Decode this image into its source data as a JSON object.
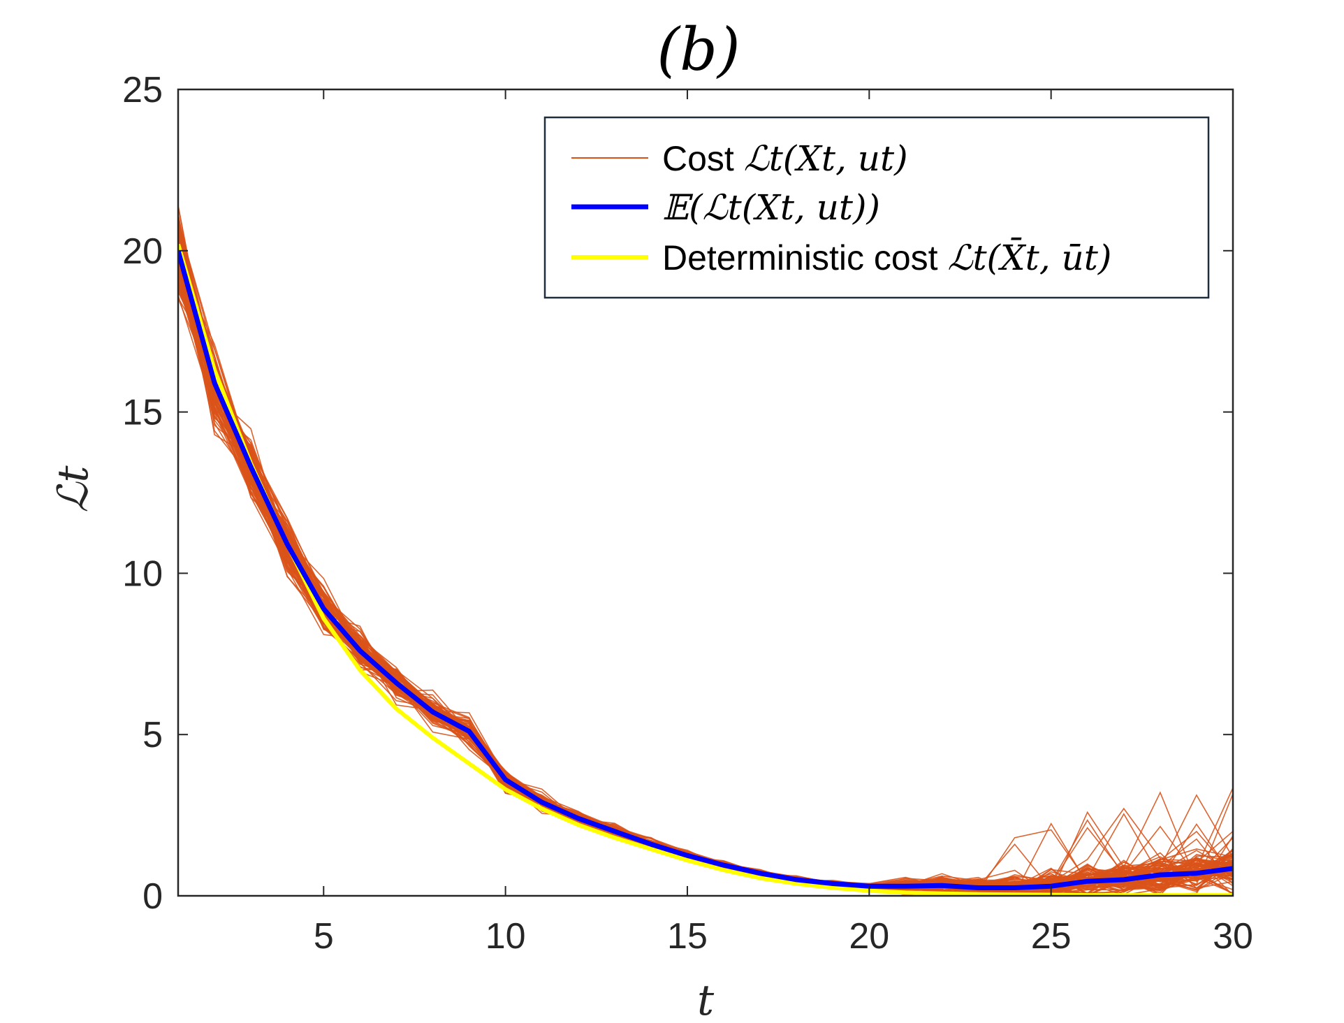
{
  "chart_data": {
    "type": "line",
    "title": "(b)",
    "xlabel": "t",
    "ylabel": "ℒt",
    "xlim": [
      1,
      30
    ],
    "ylim": [
      0,
      25
    ],
    "x_ticks": [
      5,
      10,
      15,
      20,
      25,
      30
    ],
    "y_ticks": [
      0,
      5,
      10,
      15,
      20,
      25
    ],
    "grid": false,
    "legend_position": "top-right",
    "x": [
      1,
      2,
      3,
      4,
      5,
      6,
      7,
      8,
      9,
      10,
      11,
      12,
      13,
      14,
      15,
      16,
      17,
      18,
      19,
      20,
      21,
      22,
      23,
      24,
      25,
      26,
      27,
      28,
      29,
      30
    ],
    "series": [
      {
        "name": "Cost ℒt(Xt, ut)",
        "color": "#D95319",
        "style": "sample paths (many thin lines)",
        "values": [
          20.0,
          15.9,
          13.3,
          10.9,
          8.9,
          7.6,
          6.6,
          5.7,
          5.1,
          3.6,
          2.9,
          2.4,
          2.0,
          1.6,
          1.25,
          0.95,
          0.7,
          0.5,
          0.38,
          0.3,
          0.3,
          0.32,
          0.25,
          0.25,
          0.3,
          0.45,
          0.5,
          0.65,
          0.7,
          0.85
        ]
      },
      {
        "name": "𝔼(ℒt(Xt, ut))",
        "color": "#0000FF",
        "values": [
          20.0,
          15.9,
          13.3,
          10.9,
          8.9,
          7.6,
          6.6,
          5.7,
          5.1,
          3.6,
          2.9,
          2.4,
          2.0,
          1.6,
          1.25,
          0.95,
          0.7,
          0.5,
          0.38,
          0.3,
          0.3,
          0.32,
          0.25,
          0.25,
          0.3,
          0.45,
          0.5,
          0.65,
          0.7,
          0.85
        ]
      },
      {
        "name": "Deterministic cost ℒt(X̄t, ūt)",
        "color": "#FFFF00",
        "values": [
          20.2,
          16.3,
          13.4,
          10.9,
          8.6,
          7.0,
          5.8,
          4.9,
          4.1,
          3.3,
          2.7,
          2.2,
          1.8,
          1.45,
          1.1,
          0.8,
          0.55,
          0.38,
          0.25,
          0.16,
          0.1,
          0.07,
          0.05,
          0.04,
          0.03,
          0.02,
          0.02,
          0.02,
          0.02,
          0.02
        ]
      }
    ]
  },
  "legend": {
    "cost_prefix": "Cost ",
    "cost_math": "ℒt(Xt, ut)",
    "mean_math": "𝔼(ℒt(Xt, ut))",
    "det_prefix": "Deterministic cost ",
    "det_math": "ℒt(X̄t, ūt)"
  }
}
